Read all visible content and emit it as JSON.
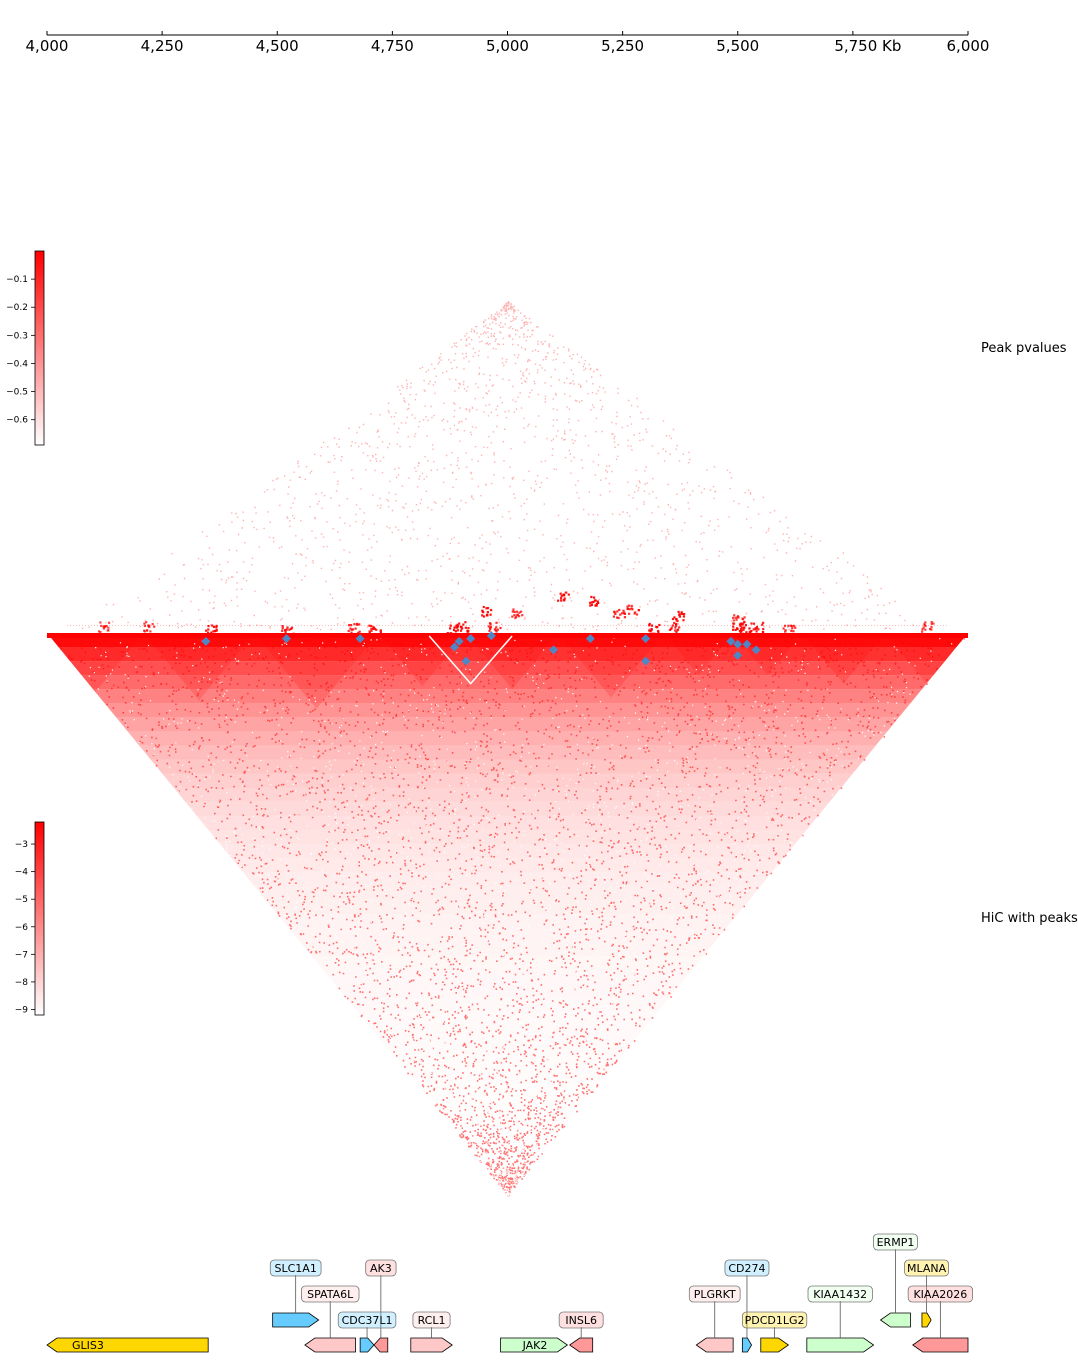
{
  "chart_data": {
    "type": "heatmap",
    "genomic_axis": {
      "range_kb": [
        4000,
        6000
      ],
      "ticks": [
        {
          "value": 4000,
          "label": "4,000"
        },
        {
          "value": 4250,
          "label": "4,250"
        },
        {
          "value": 4500,
          "label": "4,500"
        },
        {
          "value": 4750,
          "label": "4,750"
        },
        {
          "value": 5000,
          "label": "5,000"
        },
        {
          "value": 5250,
          "label": "5,250"
        },
        {
          "value": 5500,
          "label": "5,500"
        },
        {
          "value": 5750,
          "label": "5,750 Kb"
        },
        {
          "value": 6000,
          "label": "6,000"
        }
      ]
    },
    "tracks": [
      {
        "name": "Peak pvalues",
        "colormap": [
          "#ffffff",
          "#ff0000"
        ],
        "colorbar_ticks": [
          {
            "value": -0.1,
            "label": "−0.1"
          },
          {
            "value": -0.2,
            "label": "−0.2"
          },
          {
            "value": -0.3,
            "label": "−0.3"
          },
          {
            "value": -0.4,
            "label": "−0.4"
          },
          {
            "value": -0.5,
            "label": "−0.5"
          },
          {
            "value": -0.6,
            "label": "−0.6"
          }
        ],
        "colorbar_range": [
          -0.69,
          0.0
        ],
        "blobs": [
          [
            4340,
            4370,
            -0.1
          ],
          [
            4510,
            4530,
            -0.15
          ],
          [
            4650,
            4680,
            -0.2
          ],
          [
            4700,
            4720,
            -0.15
          ],
          [
            4870,
            4890,
            -0.05
          ],
          [
            4880,
            4920,
            -0.1
          ],
          [
            4950,
            4990,
            -0.2
          ],
          [
            4890,
            5020,
            -0.1
          ],
          [
            4960,
            5080,
            -0.25
          ],
          [
            5090,
            5280,
            -0.05
          ],
          [
            5180,
            5300,
            -0.2
          ],
          [
            5010,
            5230,
            -0.1
          ],
          [
            5320,
            5420,
            -0.1
          ],
          [
            5300,
            5330,
            -0.05
          ],
          [
            5340,
            5380,
            -0.2
          ],
          [
            5200,
            5340,
            -0.25
          ],
          [
            5480,
            5520,
            -0.1
          ],
          [
            5500,
            5530,
            -0.05
          ],
          [
            5520,
            5560,
            -0.15
          ],
          [
            5600,
            5620,
            -0.25
          ],
          [
            5890,
            5930,
            -0.3
          ],
          [
            4200,
            4240,
            -0.3
          ],
          [
            4100,
            4140,
            -0.35
          ],
          [
            5460,
            5540,
            -0.3
          ]
        ]
      },
      {
        "name": "HiC with peaks",
        "colormap": [
          "#ffffff",
          "#ff0000"
        ],
        "colorbar_ticks": [
          {
            "value": -3,
            "label": "−3"
          },
          {
            "value": -4,
            "label": "−4"
          },
          {
            "value": -5,
            "label": "−5"
          },
          {
            "value": -6,
            "label": "−6"
          },
          {
            "value": -7,
            "label": "−7"
          },
          {
            "value": -8,
            "label": "−8"
          },
          {
            "value": -9,
            "label": "−9"
          }
        ],
        "colorbar_range": [
          -9.2,
          -2.2
        ],
        "tads": [
          [
            4000,
            4210
          ],
          [
            4210,
            4450
          ],
          [
            4450,
            4720
          ],
          [
            4720,
            4910
          ],
          [
            4910,
            5110
          ],
          [
            5110,
            5340
          ],
          [
            5340,
            5490
          ],
          [
            5490,
            5640
          ],
          [
            5640,
            5820
          ],
          [
            5820,
            6000
          ]
        ],
        "peaks": [
          [
            4330,
            4360
          ],
          [
            4510,
            4530
          ],
          [
            4670,
            4690
          ],
          [
            4860,
            4910
          ],
          [
            4880,
            4910
          ],
          [
            4860,
            4960
          ],
          [
            4910,
            4930
          ],
          [
            4960,
            4970
          ],
          [
            5070,
            5130
          ],
          [
            5170,
            5190
          ],
          [
            5250,
            5350
          ],
          [
            5290,
            5310
          ],
          [
            5470,
            5500
          ],
          [
            5480,
            5520
          ],
          [
            5460,
            5540
          ],
          [
            5500,
            5540
          ],
          [
            5510,
            5570
          ]
        ],
        "color_peaks": "#4f86c6"
      }
    ],
    "genes": [
      {
        "name": "GLIS3",
        "start": 4000,
        "end": 4350,
        "strand": "-",
        "color": "#ffd700",
        "label_inside": true
      },
      {
        "name": "SLC1A1",
        "start": 4490,
        "end": 4590,
        "strand": "+",
        "color": "#66ccff",
        "row": 2
      },
      {
        "name": "SPATA6L",
        "start": 4560,
        "end": 4670,
        "strand": "-",
        "color": "#ffc8c8",
        "row": 1
      },
      {
        "name": "AK3",
        "start": 4710,
        "end": 4740,
        "strand": "-",
        "color": "#ff9999",
        "row": 3
      },
      {
        "name": "CDC37L1",
        "start": 4680,
        "end": 4710,
        "strand": "+",
        "color": "#66ccff",
        "row": 0
      },
      {
        "name": "RCL1",
        "start": 4790,
        "end": 4880,
        "strand": "+",
        "color": "#ffc8c8",
        "row": 0
      },
      {
        "name": "JAK2",
        "start": 4985,
        "end": 5130,
        "strand": "+",
        "color": "#ccffcc",
        "label_inside": true
      },
      {
        "name": "INSL6",
        "start": 5135,
        "end": 5185,
        "strand": "-",
        "color": "#ff9999",
        "row": 0
      },
      {
        "name": "PLGRKT",
        "start": 5410,
        "end": 5490,
        "strand": "-",
        "color": "#ffc8c8",
        "row": 1
      },
      {
        "name": "CD274",
        "start": 5510,
        "end": 5530,
        "strand": "+",
        "color": "#66ccff",
        "row": 2
      },
      {
        "name": "PDCD1LG2",
        "start": 5550,
        "end": 5610,
        "strand": "+",
        "color": "#ffd700",
        "row": 0
      },
      {
        "name": "KIAA1432",
        "start": 5650,
        "end": 5795,
        "strand": "+",
        "color": "#ccffcc",
        "row": 1
      },
      {
        "name": "ERMP1",
        "start": 5810,
        "end": 5875,
        "strand": "-",
        "color": "#ccffcc",
        "row": 4
      },
      {
        "name": "MLANA",
        "start": 5900,
        "end": 5920,
        "strand": "+",
        "color": "#ffd700",
        "row": 3
      },
      {
        "name": "KIAA2026",
        "start": 5880,
        "end": 6000,
        "strand": "-",
        "color": "#ff9999",
        "row": 1
      }
    ]
  }
}
